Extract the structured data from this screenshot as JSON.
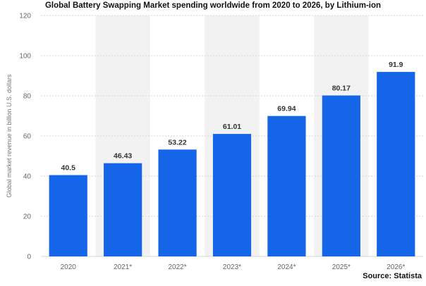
{
  "chart_data": {
    "type": "bar",
    "title": "Global Battery Swapping Market spending worldwide from 2020 to 2026, by Lithium-ion",
    "ylabel": "Global market revenue in billion U.S. dollars",
    "xlabel": "",
    "source": "Source: Statista",
    "categories": [
      "2020",
      "2021*",
      "2022*",
      "2023*",
      "2024*",
      "2025*",
      "2026*"
    ],
    "values": [
      40.5,
      46.43,
      53.22,
      61.01,
      69.94,
      80.17,
      91.9
    ],
    "value_labels": [
      "40.5",
      "46.43",
      "53.22",
      "61.01",
      "69.94",
      "80.17",
      "91.9"
    ],
    "ylim": [
      0,
      120
    ],
    "yticks": [
      0,
      20,
      40,
      60,
      80,
      100,
      120
    ],
    "grid": true,
    "legend": "none",
    "colors": {
      "bar": "#1565e8",
      "band": "#f2f2f2",
      "grid": "#d6d6d6"
    }
  }
}
